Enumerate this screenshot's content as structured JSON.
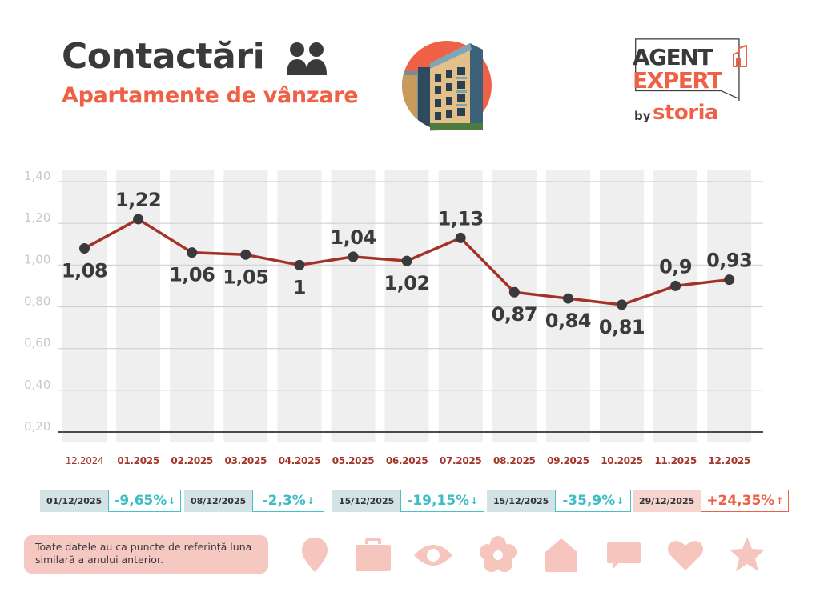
{
  "header": {
    "title": "Contactări",
    "subtitle": "Apartamente de vânzare",
    "title_icon": "people-icon",
    "hero_image": "apartment-building-photo"
  },
  "logo": {
    "line1": "AGENT",
    "line2": "EXPERT",
    "by": "by",
    "brand": "storia"
  },
  "colors": {
    "accent": "#ef6147",
    "dark": "#3a3a3c",
    "line": "#a33328",
    "teal": "#3fbdc5",
    "column_bg": "#efefef",
    "grid": "#d0d0d0",
    "icon_pink": "#f6c5be"
  },
  "chart_data": {
    "type": "line",
    "title": "Contactări",
    "categories": [
      "12.2024",
      "01.2025",
      "02.2025",
      "03.2025",
      "04.2025",
      "05.2025",
      "06.2025",
      "07.2025",
      "08.2025",
      "09.2025",
      "10.2025",
      "11.2025",
      "12.2025"
    ],
    "values": [
      1.08,
      1.22,
      1.06,
      1.05,
      1,
      1.04,
      1.02,
      1.13,
      0.87,
      0.84,
      0.81,
      0.9,
      0.93
    ],
    "data_labels": [
      "1,08",
      "1,22",
      "1,06",
      "1,05",
      "1",
      "1,04",
      "1,02",
      "1,13",
      "0,87",
      "0,84",
      "0,81",
      "0,9",
      "0,93"
    ],
    "label_position": [
      "below",
      "above",
      "below",
      "below",
      "below",
      "above",
      "below",
      "above",
      "below",
      "below",
      "below",
      "above",
      "above"
    ],
    "y_ticks": [
      1.4,
      1.2,
      1.0,
      0.8,
      0.6,
      0.4,
      0.2
    ],
    "y_tick_labels": [
      "1,40",
      "1,20",
      "1,00",
      "0,80",
      "0,60",
      "0,40",
      "0,20"
    ],
    "ylim": [
      0.2,
      1.4
    ],
    "grid": true,
    "xlabel": "",
    "ylabel": "",
    "legend": "none"
  },
  "badges": [
    {
      "date": "01/12/2025",
      "value": "-9,65%",
      "direction": "down",
      "arrow": "↓"
    },
    {
      "date": "08/12/2025",
      "value": "-2,3%",
      "direction": "down",
      "arrow": "↓"
    },
    {
      "date": "15/12/2025",
      "value": "-19,15%",
      "direction": "down",
      "arrow": "↓"
    },
    {
      "date": "15/12/2025",
      "value": "-35,9%",
      "direction": "down",
      "arrow": "↓"
    },
    {
      "date": "29/12/2025",
      "value": "+24,35%",
      "direction": "up",
      "arrow": "↑"
    }
  ],
  "note": {
    "text": "Toate datele au ca puncte de referință luna similară a anului anterior."
  },
  "footer_icons": [
    "location-pin-icon",
    "briefcase-icon",
    "eye-icon",
    "flower-icon",
    "house-icon",
    "chat-bubble-icon",
    "heart-icon",
    "star-icon"
  ]
}
